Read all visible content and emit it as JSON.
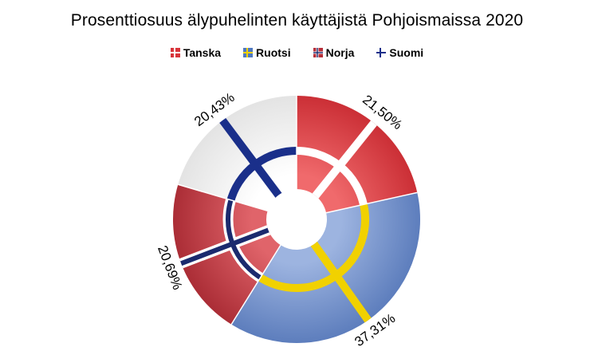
{
  "chart_data": {
    "type": "pie",
    "title": "Prosenttiosuus älypuhelinten käyttäjistä Pohjoismaissa 2020",
    "categories": [
      "Tanska",
      "Ruotsi",
      "Norja",
      "Suomi"
    ],
    "values": [
      21.5,
      37.31,
      20.69,
      20.43
    ],
    "value_labels": [
      "21,50%",
      "37,31%",
      "20,69%",
      "20,43%"
    ],
    "legend_position": "top-center",
    "style": "donut with flag cross pattern per slice",
    "colors": {
      "Tanska": {
        "field": "#d8343a",
        "cross": "#ffffff"
      },
      "Ruotsi": {
        "field": "#6f90cc",
        "cross": "#f1d100"
      },
      "Norja": {
        "field": "#c4313a",
        "cross_outer": "#ffffff",
        "cross": "#1b2a6e"
      },
      "Suomi": {
        "field": "#ececec",
        "cross": "#1a2f8a"
      }
    }
  }
}
